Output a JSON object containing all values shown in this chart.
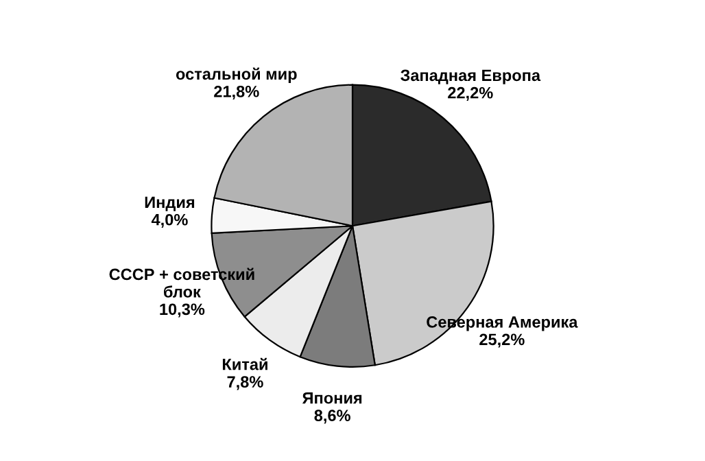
{
  "chart_data": {
    "type": "pie",
    "categories": [
      "Западная Европа",
      "Северная Америка",
      "Япония",
      "Китай",
      "СССР + советский\nблок",
      "Индия",
      "остальной мир"
    ],
    "values": [
      22.2,
      25.2,
      8.6,
      7.8,
      10.3,
      4.0,
      21.8
    ],
    "value_labels": [
      "22,2%",
      "25,2%",
      "8,6%",
      "7,8%",
      "10,3%",
      "4,0%",
      "21,8%"
    ],
    "colors": [
      "#2b2b2b",
      "#cbcbcb",
      "#7c7c7c",
      "#ececec",
      "#8e8e8e",
      "#f7f7f7",
      "#b3b3b3"
    ]
  }
}
